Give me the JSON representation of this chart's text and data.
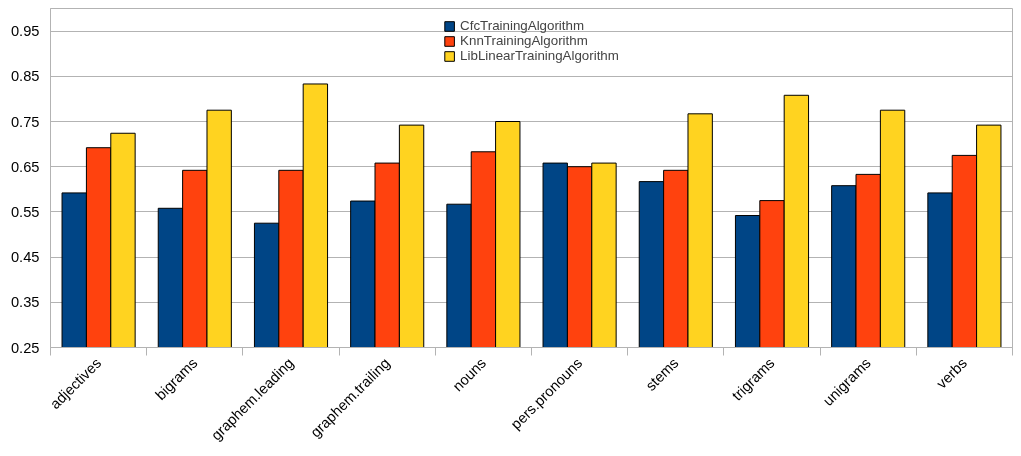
{
  "chart_data": {
    "type": "bar",
    "categories": [
      "adjectives",
      "bigrams",
      "graphem.leading",
      "graphem.trailing",
      "nouns",
      "pers.pronouns",
      "stems",
      "trigrams",
      "unigrams",
      "verbs"
    ],
    "series": [
      {
        "name": "CfcTrainingAlgorithm",
        "color": "#004586",
        "values": [
          0.592,
          0.558,
          0.525,
          0.574,
          0.567,
          0.658,
          0.617,
          0.542,
          0.608,
          0.592
        ]
      },
      {
        "name": "KnnTrainingAlgorithm",
        "color": "#ff420e",
        "values": [
          0.692,
          0.642,
          0.642,
          0.658,
          0.683,
          0.65,
          0.642,
          0.575,
          0.633,
          0.675
        ]
      },
      {
        "name": "LibLinearTrainingAlgorithm",
        "color": "#ffd320",
        "values": [
          0.724,
          0.775,
          0.833,
          0.742,
          0.75,
          0.658,
          0.767,
          0.808,
          0.775,
          0.742
        ]
      }
    ],
    "ylim": [
      0.25,
      1.0
    ],
    "yticks": [
      0.25,
      0.35,
      0.45,
      0.55,
      0.65,
      0.75,
      0.85,
      0.95
    ],
    "grid": "y",
    "legend": "top"
  }
}
